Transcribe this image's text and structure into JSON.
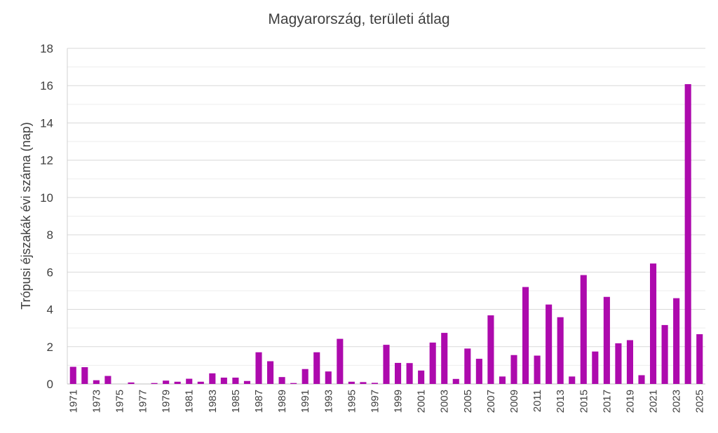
{
  "chart_data": {
    "type": "bar",
    "title": "Magyarország, területi átlag",
    "xlabel": "",
    "ylabel": "Trópusi éjszakák évi száma (nap)",
    "ylim": [
      0,
      18
    ],
    "y_ticks": [
      0,
      2,
      4,
      6,
      8,
      10,
      12,
      14,
      16,
      18
    ],
    "grid": true,
    "bar_color": "#ad0aad",
    "categories": [
      "1971",
      "1972",
      "1973",
      "1974",
      "1975",
      "1976",
      "1977",
      "1978",
      "1979",
      "1980",
      "1981",
      "1982",
      "1983",
      "1984",
      "1985",
      "1986",
      "1987",
      "1988",
      "1989",
      "1990",
      "1991",
      "1992",
      "1993",
      "1994",
      "1995",
      "1996",
      "1997",
      "1998",
      "1999",
      "2000",
      "2001",
      "2002",
      "2003",
      "2004",
      "2005",
      "2006",
      "2007",
      "2008",
      "2009",
      "2010",
      "2011",
      "2012",
      "2013",
      "2014",
      "2015",
      "2016",
      "2017",
      "2018",
      "2019",
      "2020",
      "2021",
      "2022",
      "2023",
      "2024",
      "2025"
    ],
    "x_tick_labels": [
      "1971",
      "",
      "1973",
      "",
      "1975",
      "",
      "1977",
      "",
      "1979",
      "",
      "1981",
      "",
      "1983",
      "",
      "1985",
      "",
      "1987",
      "",
      "1989",
      "",
      "1991",
      "",
      "1993",
      "",
      "1995",
      "",
      "1997",
      "",
      "1999",
      "",
      "2001",
      "",
      "2003",
      "",
      "2005",
      "",
      "2007",
      "",
      "2009",
      "",
      "2011",
      "",
      "2013",
      "",
      "2015",
      "",
      "2017",
      "",
      "2019",
      "",
      "2021",
      "",
      "2023",
      "",
      "2025"
    ],
    "values": [
      0.92,
      0.9,
      0.2,
      0.43,
      0.0,
      0.08,
      0.0,
      0.05,
      0.18,
      0.12,
      0.28,
      0.12,
      0.57,
      0.34,
      0.34,
      0.16,
      1.7,
      1.22,
      0.37,
      0.05,
      0.8,
      1.7,
      0.67,
      2.42,
      0.12,
      0.1,
      0.06,
      2.1,
      1.13,
      1.12,
      0.72,
      2.22,
      2.74,
      0.27,
      1.9,
      1.35,
      3.68,
      0.4,
      1.55,
      5.2,
      1.52,
      4.26,
      3.58,
      0.4,
      5.84,
      1.74,
      4.67,
      2.18,
      2.35,
      0.47,
      6.46,
      3.16,
      4.6,
      16.08,
      2.67
    ]
  }
}
